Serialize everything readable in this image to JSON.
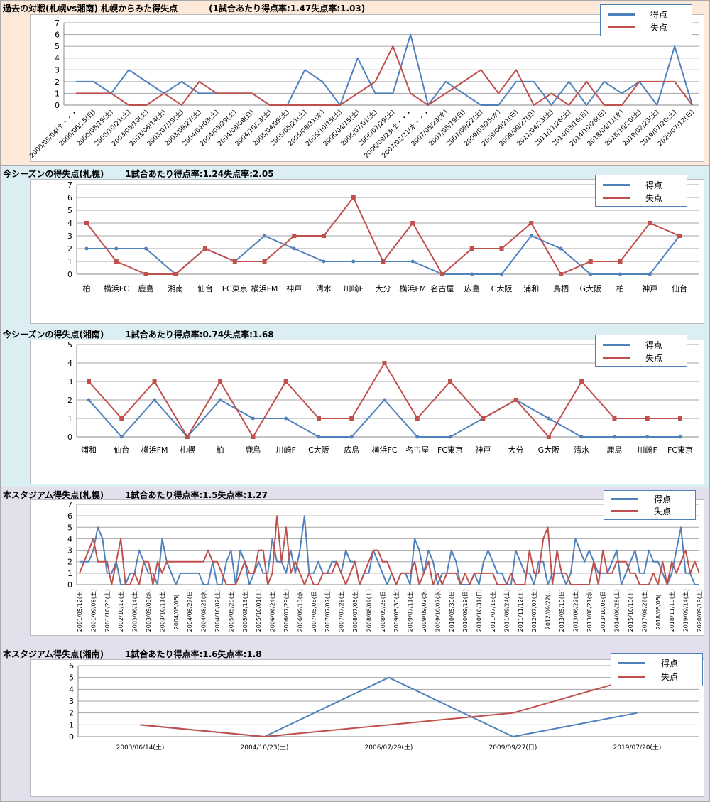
{
  "colors": {
    "scored": "#4f81bd",
    "conceded": "#c0504d"
  },
  "legend": {
    "scored": "得点",
    "conceded": "失点"
  },
  "chart_data": [
    {
      "type": "line",
      "title": "過去の対戦(札幌vs湘南)  札幌からみた得失点",
      "subtitle": "(1試合あたり得点率:1.47失点率:1.03)",
      "ylim": [
        0,
        7
      ],
      "categories": [
        "2000/05/04(木・・・",
        "2000/06/25(日)",
        "2000/08/19(土)",
        "2000/10/21(土)",
        "2003/05/10(土)",
        "2003/06/14(土)",
        "2003/07/19(土)",
        "2003/09/27(土)",
        "2004/04/03(土)",
        "2004/05/29(土)",
        "2004/08/08(日)",
        "2004/10/23(土)",
        "2005/04/09(土)",
        "2005/05/21(土)",
        "2005/08/31(水)",
        "2005/10/15(土)",
        "2006/04/15(土)",
        "2006/07/01(土)",
        "2006/07/29(土)",
        "2006/09/23(土・・・",
        "2007/03/21(水・・・",
        "2007/05/23(水)",
        "2007/08/19(日)",
        "2007/09/22(土)",
        "2009/03/25(水)",
        "2009/06/21(日)",
        "2009/09/27(日)",
        "2011/04/23(土)",
        "2011/11/26(土)",
        "2014/03/16(日)",
        "2014/10/26(日)",
        "2018/04/11(水)",
        "2018/10/20(土)",
        "2019/02/23(土)",
        "2019/07/20(土)",
        "2020/07/12(日)"
      ],
      "series": [
        {
          "name": "得点",
          "values": [
            2,
            2,
            1,
            3,
            2,
            1,
            2,
            1,
            1,
            1,
            1,
            0,
            0,
            3,
            2,
            0,
            4,
            1,
            1,
            6,
            0,
            2,
            1,
            0,
            0,
            2,
            2,
            0,
            2,
            0,
            2,
            1,
            2,
            0,
            5,
            0
          ]
        },
        {
          "name": "失点",
          "values": [
            1,
            1,
            1,
            0,
            0,
            1,
            0,
            2,
            1,
            1,
            1,
            0,
            0,
            0,
            0,
            0,
            1,
            2,
            5,
            1,
            0,
            1,
            2,
            3,
            1,
            3,
            0,
            1,
            0,
            2,
            0,
            0,
            2,
            2,
            2,
            0
          ]
        }
      ]
    },
    {
      "type": "line",
      "title": "今シーズンの得失点(札幌)",
      "subtitle": "1試合あたり得点率:1.24失点率:2.05",
      "ylim": [
        0,
        7
      ],
      "categories": [
        "柏",
        "横浜FC",
        "鹿島",
        "湘南",
        "仙台",
        "FC東京",
        "横浜FM",
        "神戸",
        "清水",
        "川崎F",
        "大分",
        "横浜FM",
        "名古屋",
        "広島",
        "C大阪",
        "浦和",
        "鳥栖",
        "G大阪",
        "柏",
        "神戸",
        "仙台"
      ],
      "series": [
        {
          "name": "得点",
          "values": [
            2,
            2,
            2,
            0,
            2,
            1,
            3,
            2,
            1,
            1,
            1,
            1,
            0,
            0,
            0,
            3,
            2,
            0,
            0,
            0,
            3
          ]
        },
        {
          "name": "失点",
          "values": [
            4,
            1,
            0,
            0,
            2,
            1,
            1,
            3,
            3,
            6,
            1,
            4,
            0,
            2,
            2,
            4,
            0,
            1,
            1,
            4,
            3
          ]
        }
      ]
    },
    {
      "type": "line",
      "title": "今シーズンの得失点(湘南)",
      "subtitle": "1試合あたり得点率:0.74失点率:1.68",
      "ylim": [
        0,
        5
      ],
      "categories": [
        "浦和",
        "仙台",
        "横浜FM",
        "札幌",
        "柏",
        "鹿島",
        "川崎F",
        "C大阪",
        "広島",
        "横浜FC",
        "名古屋",
        "FC東京",
        "神戸",
        "大分",
        "G大阪",
        "清水",
        "鹿島",
        "川崎F",
        "FC東京"
      ],
      "series": [
        {
          "name": "得点",
          "values": [
            2,
            0,
            2,
            0,
            2,
            1,
            1,
            0,
            0,
            2,
            0,
            0,
            1,
            2,
            1,
            0,
            0,
            0,
            0
          ]
        },
        {
          "name": "失点",
          "values": [
            3,
            1,
            3,
            0,
            3,
            0,
            3,
            1,
            1,
            4,
            1,
            3,
            1,
            2,
            0,
            3,
            1,
            1,
            1
          ]
        }
      ]
    },
    {
      "type": "line",
      "title": "本スタジアム得失点(札幌)",
      "subtitle": "1試合あたり得点率:1.5失点率:1.27",
      "ylim": [
        0,
        7
      ],
      "category_labels": [
        "2001/05/12(土)",
        "2001/09/08(土)",
        "2001/10/20(土)",
        "2002/10/12(土)",
        "2003/06/14(土)",
        "2003/09/03(水)",
        "2003/10/11(土)",
        "2004/05/05(…",
        "2004/06/27(日)",
        "2004/08/25(水)",
        "2004/10/02(土)",
        "2005/05/28(土)",
        "2005/08/13(土)",
        "2005/10/01(土)",
        "2006/06/24(土)",
        "2006/07/29(土)",
        "2006/09/13(水)",
        "2007/05/06(日)",
        "2007/07/07(土)",
        "2007/07/28(土)",
        "2008/07/05(土)",
        "2008/08/09(土)",
        "2008/09/28(日)",
        "2009/05/30(土)",
        "2009/07/11(土)",
        "2009/09/02(水)",
        "2009/10/07(水)",
        "2010/05/30(日)",
        "2010/09/19(日)",
        "2010/10/31(日)",
        "2011/07/16(土)",
        "2011/09/24(土)",
        "2011/11/12(土)",
        "2012/07/07(土)",
        "2012/09/22(…",
        "2013/05/19(日)",
        "2013/06/22(土)",
        "2013/08/21(水)",
        "2013/10/06(日)",
        "2014/06/28(土)",
        "2015/10/10(土)",
        "2017/08/26(土)",
        "2018/05/05(…",
        "2018/11/10(土)",
        "2019/09/14(土)",
        "2020/09/19(土)"
      ],
      "series": [
        {
          "name": "得点",
          "values": [
            2,
            2,
            2,
            3,
            5,
            4,
            1,
            1,
            2,
            0,
            0,
            1,
            1,
            3,
            2,
            1,
            1,
            0,
            4,
            2,
            1,
            0,
            1,
            1,
            1,
            1,
            1,
            0,
            0,
            2,
            0,
            0,
            2,
            3,
            0,
            3,
            2,
            0,
            1,
            2,
            1,
            1,
            4,
            2,
            2,
            1,
            3,
            1,
            3,
            6,
            1,
            1,
            2,
            1,
            1,
            2,
            2,
            1,
            3,
            2,
            2,
            0,
            1,
            1,
            3,
            2,
            1,
            0,
            1,
            0,
            1,
            1,
            0,
            4,
            3,
            1,
            3,
            2,
            0,
            1,
            1,
            3,
            2,
            0,
            0,
            0,
            1,
            0,
            2,
            3,
            2,
            1,
            1,
            0,
            0,
            3,
            2,
            1,
            1,
            0,
            2,
            2,
            0,
            1,
            1,
            1,
            0,
            1,
            4,
            3,
            2,
            3,
            2,
            1,
            1,
            1,
            2,
            3,
            0,
            1,
            2,
            3,
            1,
            1,
            3,
            2,
            2,
            1,
            0,
            1,
            3,
            5,
            1,
            1,
            0,
            0
          ]
        },
        {
          "name": "失点",
          "values": [
            1,
            2,
            3,
            4,
            2,
            2,
            2,
            0,
            2,
            4,
            0,
            0,
            1,
            0,
            2,
            2,
            0,
            2,
            1,
            2,
            2,
            2,
            2,
            2,
            2,
            2,
            2,
            2,
            3,
            2,
            2,
            1,
            0,
            0,
            0,
            1,
            2,
            1,
            1,
            3,
            3,
            0,
            1,
            6,
            2,
            5,
            1,
            2,
            1,
            0,
            1,
            0,
            0,
            1,
            1,
            1,
            2,
            1,
            0,
            1,
            2,
            0,
            1,
            2,
            3,
            3,
            2,
            2,
            1,
            0,
            1,
            1,
            1,
            2,
            0,
            1,
            2,
            0,
            1,
            0,
            1,
            1,
            1,
            0,
            1,
            0,
            1,
            1,
            1,
            1,
            1,
            0,
            0,
            0,
            1,
            0,
            0,
            0,
            3,
            1,
            1,
            4,
            5,
            0,
            3,
            1,
            1,
            0,
            0,
            0,
            0,
            0,
            2,
            0,
            3,
            1,
            1,
            2,
            2,
            2,
            1,
            1,
            0,
            0,
            0,
            1,
            0,
            2,
            0,
            2,
            1,
            2,
            3,
            1,
            2,
            1
          ]
        }
      ]
    },
    {
      "type": "line",
      "title": "本スタジアム得失点(湘南)",
      "subtitle": "1試合あたり得点率:1.6失点率:1.8",
      "ylim": [
        0,
        6
      ],
      "categories": [
        "2003/06/14(土)",
        "2004/10/23(土)",
        "2006/07/29(土)",
        "2009/09/27(日)",
        "2019/07/20(土)"
      ],
      "series": [
        {
          "name": "得点",
          "values": [
            1,
            0,
            5,
            0,
            2
          ]
        },
        {
          "name": "失点",
          "values": [
            1,
            0,
            1,
            2,
            5
          ]
        }
      ]
    }
  ]
}
